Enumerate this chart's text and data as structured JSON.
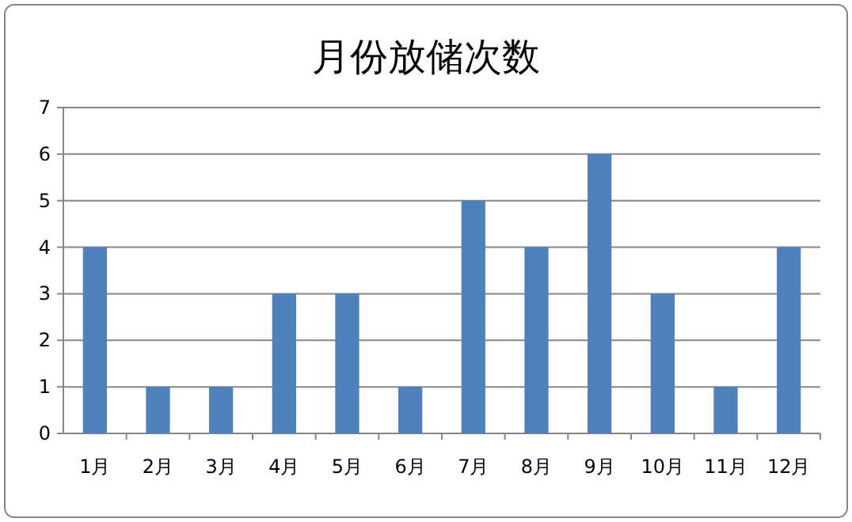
{
  "chart_data": {
    "type": "bar",
    "title": "月份放储次数",
    "categories": [
      "1月",
      "2月",
      "3月",
      "4月",
      "5月",
      "6月",
      "7月",
      "8月",
      "9月",
      "10月",
      "11月",
      "12月"
    ],
    "values": [
      4,
      1,
      1,
      3,
      3,
      1,
      5,
      4,
      6,
      3,
      1,
      4
    ],
    "color": "#4f81bd",
    "ylim": [
      0,
      7
    ],
    "yticks": [
      0,
      1,
      2,
      3,
      4,
      5,
      6,
      7
    ],
    "grid": "y"
  }
}
